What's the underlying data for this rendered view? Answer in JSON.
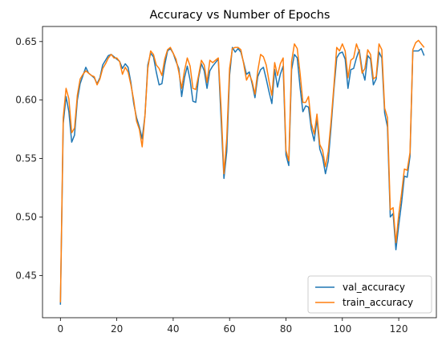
{
  "chart_data": {
    "type": "line",
    "title": "Accuracy vs Number of Epochs",
    "xlabel": "",
    "ylabel": "",
    "xlim": [
      -6.35,
      133.35
    ],
    "ylim": [
      0.4139,
      0.6629
    ],
    "xticks": [
      0,
      20,
      40,
      60,
      80,
      100,
      120
    ],
    "yticks": [
      0.45,
      0.5,
      0.55,
      0.6,
      0.65
    ],
    "ytick_labels": [
      "0.45",
      "0.50",
      "0.55",
      "0.60",
      "0.65"
    ],
    "grid": false,
    "legend_position": "lower-right",
    "series": [
      {
        "name": "val_accuracy",
        "color": "#1f77b4",
        "values": [
          0.425,
          0.58,
          0.603,
          0.59,
          0.564,
          0.57,
          0.6,
          0.614,
          0.621,
          0.628,
          0.623,
          0.621,
          0.619,
          0.614,
          0.619,
          0.63,
          0.634,
          0.638,
          0.639,
          0.637,
          0.635,
          0.633,
          0.627,
          0.631,
          0.628,
          0.615,
          0.597,
          0.585,
          0.577,
          0.567,
          0.587,
          0.63,
          0.64,
          0.637,
          0.624,
          0.613,
          0.614,
          0.63,
          0.642,
          0.644,
          0.64,
          0.633,
          0.627,
          0.603,
          0.619,
          0.629,
          0.617,
          0.599,
          0.598,
          0.619,
          0.631,
          0.625,
          0.61,
          0.625,
          0.629,
          0.632,
          0.635,
          0.583,
          0.533,
          0.556,
          0.621,
          0.645,
          0.641,
          0.644,
          0.641,
          0.632,
          0.622,
          0.624,
          0.614,
          0.602,
          0.62,
          0.626,
          0.628,
          0.618,
          0.607,
          0.597,
          0.626,
          0.611,
          0.622,
          0.629,
          0.553,
          0.544,
          0.626,
          0.639,
          0.636,
          0.611,
          0.59,
          0.595,
          0.594,
          0.575,
          0.565,
          0.584,
          0.558,
          0.551,
          0.537,
          0.548,
          0.577,
          0.609,
          0.636,
          0.64,
          0.641,
          0.635,
          0.61,
          0.626,
          0.627,
          0.636,
          0.643,
          0.626,
          0.617,
          0.638,
          0.635,
          0.613,
          0.618,
          0.641,
          0.636,
          0.589,
          0.577,
          0.5,
          0.503,
          0.472,
          0.493,
          0.512,
          0.535,
          0.534,
          0.552,
          0.642,
          0.642,
          0.642,
          0.644,
          0.638
        ]
      },
      {
        "name": "train_accuracy",
        "color": "#ff7f0e",
        "values": [
          0.427,
          0.585,
          0.61,
          0.601,
          0.572,
          0.576,
          0.604,
          0.618,
          0.622,
          0.625,
          0.623,
          0.621,
          0.62,
          0.613,
          0.618,
          0.627,
          0.631,
          0.636,
          0.639,
          0.636,
          0.636,
          0.633,
          0.622,
          0.628,
          0.624,
          0.613,
          0.6,
          0.582,
          0.575,
          0.56,
          0.587,
          0.627,
          0.642,
          0.639,
          0.63,
          0.627,
          0.621,
          0.635,
          0.643,
          0.645,
          0.64,
          0.635,
          0.624,
          0.61,
          0.625,
          0.636,
          0.629,
          0.61,
          0.609,
          0.621,
          0.634,
          0.63,
          0.615,
          0.634,
          0.632,
          0.634,
          0.636,
          0.593,
          0.537,
          0.567,
          0.627,
          0.644,
          0.645,
          0.645,
          0.643,
          0.631,
          0.617,
          0.622,
          0.616,
          0.605,
          0.625,
          0.639,
          0.637,
          0.63,
          0.616,
          0.604,
          0.632,
          0.621,
          0.631,
          0.636,
          0.557,
          0.548,
          0.633,
          0.648,
          0.644,
          0.623,
          0.598,
          0.598,
          0.603,
          0.58,
          0.571,
          0.588,
          0.562,
          0.557,
          0.543,
          0.556,
          0.582,
          0.612,
          0.645,
          0.642,
          0.648,
          0.642,
          0.619,
          0.634,
          0.636,
          0.648,
          0.641,
          0.623,
          0.627,
          0.643,
          0.639,
          0.618,
          0.62,
          0.648,
          0.643,
          0.593,
          0.585,
          0.506,
          0.508,
          0.478,
          0.502,
          0.52,
          0.541,
          0.54,
          0.555,
          0.643,
          0.649,
          0.651,
          0.648,
          0.645
        ]
      }
    ]
  }
}
